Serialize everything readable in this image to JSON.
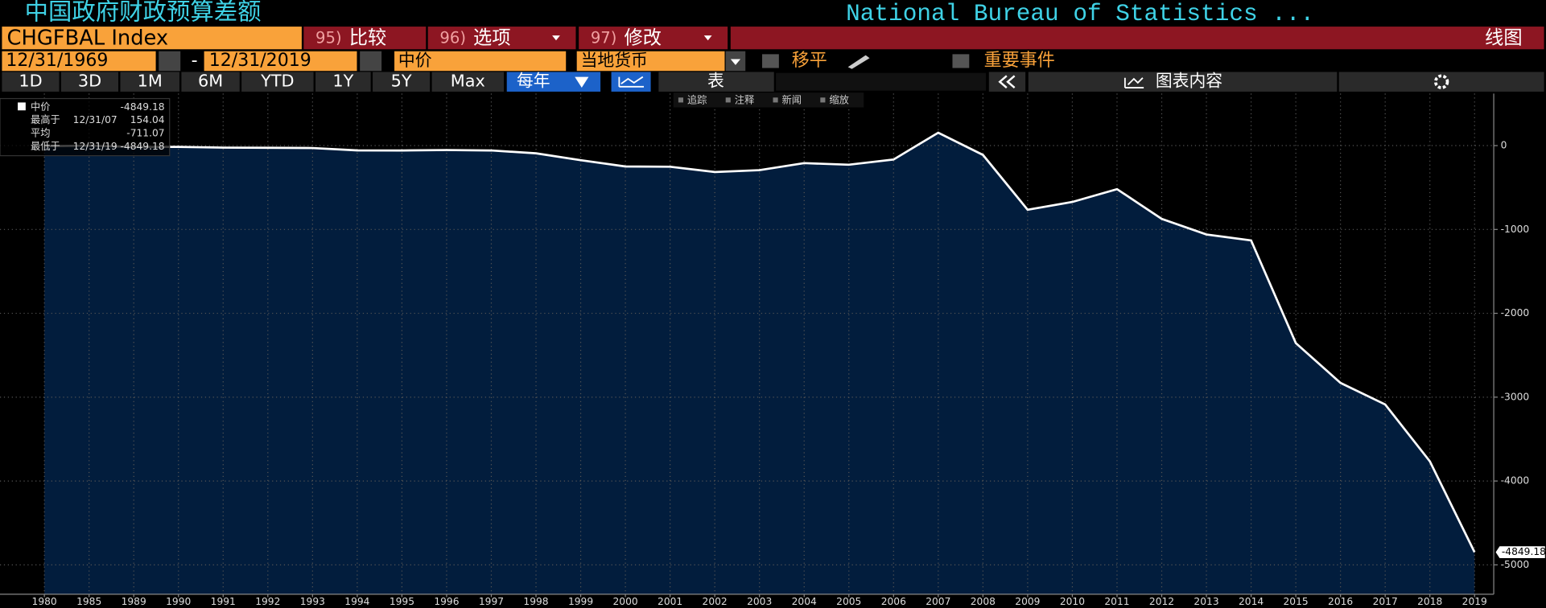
{
  "ui": {
    "title": "中国政府财政预算差额",
    "source": "National Bureau of Statistics ...",
    "ticker": "CHGFBAL Index",
    "menu": [
      {
        "num": "95)",
        "label": "比较"
      },
      {
        "num": "96)",
        "label": "选项"
      },
      {
        "num": "97)",
        "label": "修改"
      }
    ],
    "chart_style": "线图",
    "start_date": "12/31/1969",
    "date_sep": "-",
    "end_date": "12/31/2019",
    "price_field": "中价",
    "currency": "当地货币",
    "smooth": "移平",
    "events": "重要事件",
    "periods": [
      "1D",
      "3D",
      "1M",
      "6M",
      "YTD",
      "1Y",
      "5Y",
      "Max"
    ],
    "frequency": "每年",
    "table": "表",
    "chart_content": "图表内容",
    "tools": [
      "追踪",
      "注释",
      "新闻",
      "缩放"
    ]
  },
  "chart_data": {
    "type": "line",
    "categories": [
      "1980",
      "1985",
      "1989",
      "1990",
      "1991",
      "1992",
      "1993",
      "1994",
      "1995",
      "1996",
      "1997",
      "1998",
      "1999",
      "2000",
      "2001",
      "2002",
      "2003",
      "2004",
      "2005",
      "2006",
      "2007",
      "2008",
      "2009",
      "2010",
      "2011",
      "2012",
      "2013",
      "2014",
      "2015",
      "2016",
      "2017",
      "2018",
      "2019"
    ],
    "series": [
      {
        "name": "中价",
        "color": "#ffffff",
        "values": [
          -7,
          0,
          -16,
          -15,
          -24,
          -26,
          -29,
          -57,
          -58,
          -53,
          -58,
          -92,
          -174,
          -249,
          -252,
          -315,
          -293,
          -209,
          -228,
          -166,
          154.04,
          -111,
          -765,
          -672,
          -519,
          -874,
          -1060,
          -1131,
          -2355,
          -2830,
          -3087,
          -3766,
          -4849.18
        ]
      }
    ],
    "stats": [
      {
        "label": "最高于",
        "date": "12/31/07",
        "value": 154.04
      },
      {
        "label": "平均",
        "value": -711.07
      },
      {
        "label": "最低于",
        "date": "12/31/19",
        "value": -4849.18
      }
    ],
    "ylim": [
      -5350,
      620
    ],
    "yticks": [
      0,
      -1000,
      -2000,
      -3000,
      -4000,
      -5000
    ],
    "grid": true
  }
}
